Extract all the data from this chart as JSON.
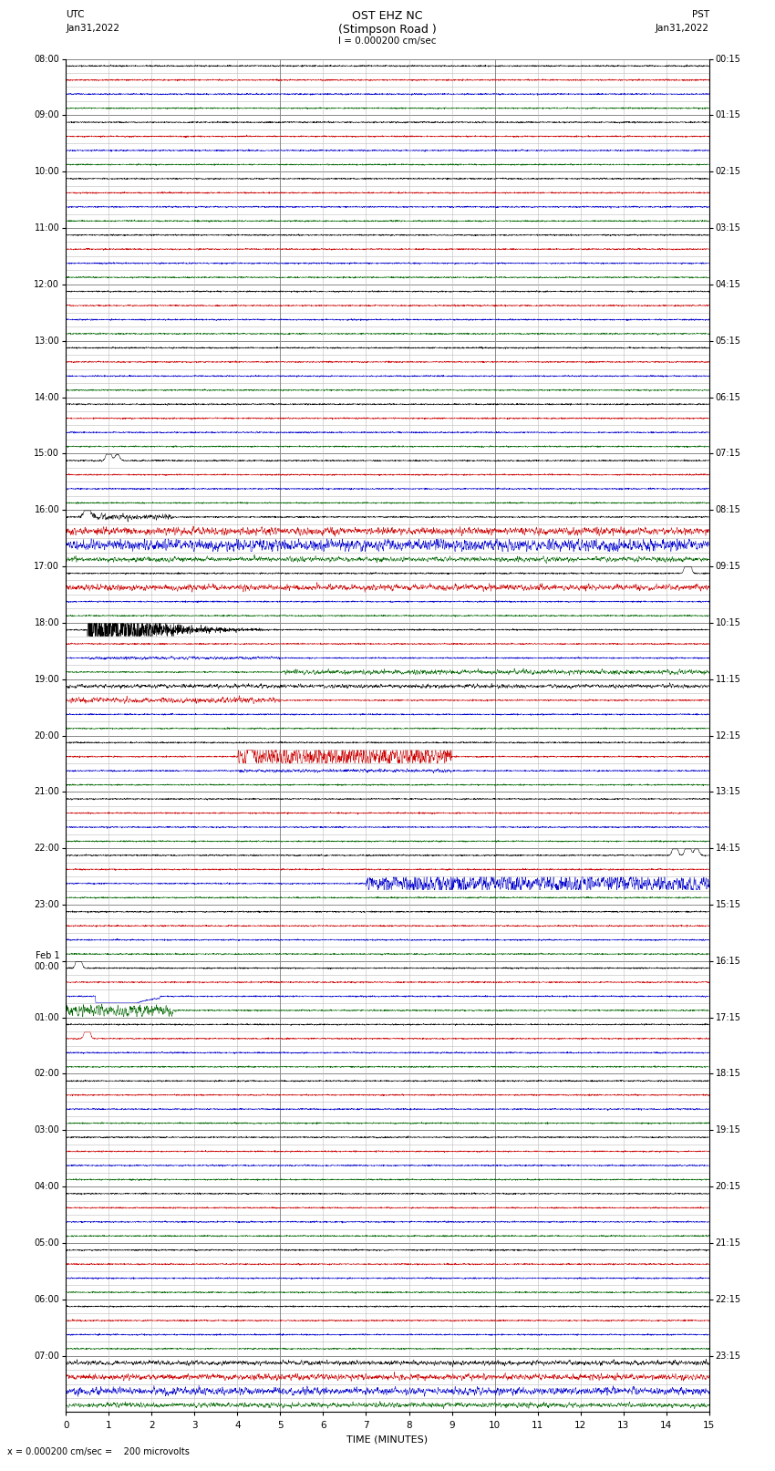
{
  "title_line1": "OST EHZ NC",
  "title_line2": "(Stimpson Road )",
  "title_line3": "I = 0.000200 cm/sec",
  "left_label_top": "UTC",
  "left_label_date": "Jan31,2022",
  "right_label_top": "PST",
  "right_label_date": "Jan31,2022",
  "xlabel": "TIME (MINUTES)",
  "footer_text": "= 0.000200 cm/sec =    200 microvolts",
  "utc_times": [
    "08:00",
    "09:00",
    "10:00",
    "11:00",
    "12:00",
    "13:00",
    "14:00",
    "15:00",
    "16:00",
    "17:00",
    "18:00",
    "19:00",
    "20:00",
    "21:00",
    "22:00",
    "23:00",
    "Feb 1\n00:00",
    "01:00",
    "02:00",
    "03:00",
    "04:00",
    "05:00",
    "06:00",
    "07:00"
  ],
  "pst_times": [
    "00:15",
    "01:15",
    "02:15",
    "03:15",
    "04:15",
    "05:15",
    "06:15",
    "07:15",
    "08:15",
    "09:15",
    "10:15",
    "11:15",
    "12:15",
    "13:15",
    "14:15",
    "15:15",
    "16:15",
    "17:15",
    "18:15",
    "19:15",
    "20:15",
    "21:15",
    "22:15",
    "23:15"
  ],
  "n_hour_groups": 24,
  "traces_per_group": 4,
  "minutes": 15,
  "bg_color": "#ffffff",
  "grid_color": "#888888",
  "grid_color_minor": "#bbbbbb",
  "line_colors": [
    "#000000",
    "#cc0000",
    "#0000cc",
    "#006600"
  ],
  "noise_amp": 0.04,
  "seed": 42
}
